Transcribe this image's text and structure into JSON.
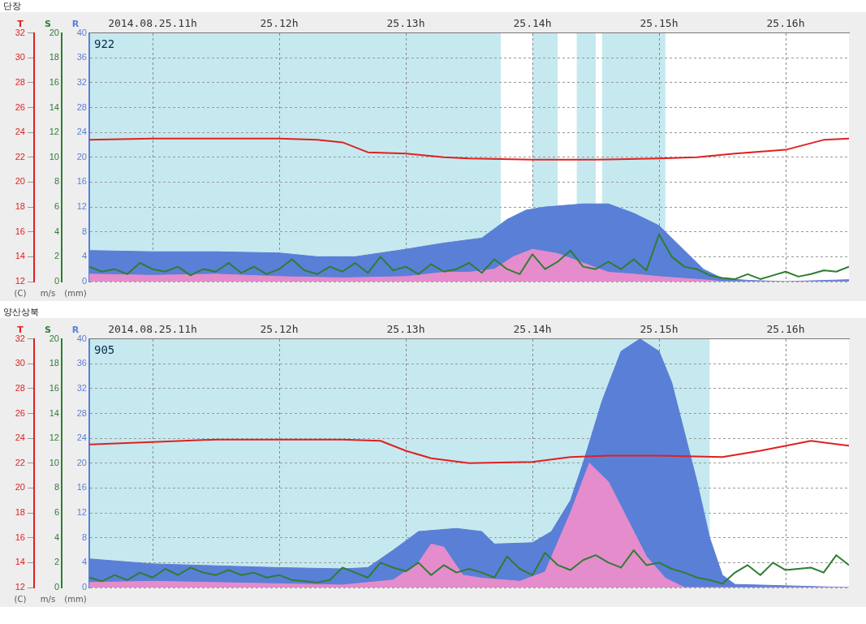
{
  "chart_data": [
    {
      "type": "line",
      "title": "단장",
      "subtitle": "922",
      "ylabel": "T",
      "y2label": "S",
      "y3label": "R",
      "annotations": [
        "(mm)",
        "m/s",
        "(C)"
      ],
      "xlim": [
        "2014-08-25T10:30",
        "2014-08-25T16:30"
      ],
      "xticks": [
        {
          "value": "2014-08-25T11:00",
          "label": "2014.08.25.11h"
        },
        {
          "value": "2014-08-25T12:00",
          "label": "25.12h"
        },
        {
          "value": "2014-08-25T13:00",
          "label": "25.13h"
        },
        {
          "value": "2014-08-25T14:00",
          "label": "25.14h"
        },
        {
          "value": "2014-08-25T15:00",
          "label": "25.15h"
        },
        {
          "value": "2014-08-25T16:00",
          "label": "25.16h"
        }
      ],
      "ylim": [
        12,
        32
      ],
      "yticks": [
        12,
        14,
        16,
        18,
        20,
        22,
        24,
        26,
        28,
        30,
        32
      ],
      "y2lim": [
        0,
        20
      ],
      "y2ticks": [
        0,
        2,
        4,
        6,
        8,
        10,
        12,
        14,
        16,
        18,
        20
      ],
      "y3lim": [
        0,
        40
      ],
      "y3ticks": [
        0,
        4,
        8,
        12,
        16,
        20,
        24,
        28,
        32,
        36,
        40
      ],
      "grid": true,
      "bands": [
        {
          "axis": "x",
          "from": "2014-08-25T10:30",
          "to": "2014-08-25T13:45",
          "color": "#c6e9f0"
        },
        {
          "axis": "x",
          "from": "2014-08-25T14:00",
          "to": "2014-08-25T14:12",
          "color": "#c6e9f0"
        },
        {
          "axis": "x",
          "from": "2014-08-25T14:21",
          "to": "2014-08-25T14:30",
          "color": "#c6e9f0"
        },
        {
          "axis": "x",
          "from": "2014-08-25T14:33",
          "to": "2014-08-25T15:03",
          "color": "#c6e9f0"
        }
      ],
      "series": [
        {
          "type": "area",
          "axis": "y3",
          "color": "#5a7fd6",
          "x": [
            "2014-08-25T10:30",
            "2014-08-25T11:00",
            "2014-08-25T11:30",
            "2014-08-25T12:00",
            "2014-08-25T12:18",
            "2014-08-25T12:36",
            "2014-08-25T13:00",
            "2014-08-25T13:18",
            "2014-08-25T13:36",
            "2014-08-25T13:48",
            "2014-08-25T13:57",
            "2014-08-25T14:06",
            "2014-08-25T14:24",
            "2014-08-25T14:36",
            "2014-08-25T14:48",
            "2014-08-25T15:00",
            "2014-08-25T15:12",
            "2014-08-25T15:21",
            "2014-08-25T15:30",
            "2014-08-25T15:42",
            "2014-08-25T16:00",
            "2014-08-25T16:30"
          ],
          "values": [
            5,
            4.8,
            4.8,
            4.6,
            4,
            4,
            5.2,
            6.2,
            7,
            10,
            11.5,
            12,
            12.5,
            12.5,
            11,
            9,
            5,
            2,
            0.5,
            0.2,
            0,
            0.3
          ]
        },
        {
          "type": "area",
          "axis": "y3",
          "color": "#e58ccc",
          "x": [
            "2014-08-25T10:30",
            "2014-08-25T11:00",
            "2014-08-25T11:30",
            "2014-08-25T12:00",
            "2014-08-25T12:30",
            "2014-08-25T13:00",
            "2014-08-25T13:18",
            "2014-08-25T13:30",
            "2014-08-25T13:42",
            "2014-08-25T13:51",
            "2014-08-25T14:00",
            "2014-08-25T14:12",
            "2014-08-25T14:24",
            "2014-08-25T14:36",
            "2014-08-25T14:48",
            "2014-08-25T15:00",
            "2014-08-25T15:12",
            "2014-08-25T15:21",
            "2014-08-25T15:30",
            "2014-08-25T16:30"
          ],
          "values": [
            1.2,
            1,
            1.2,
            0.8,
            0.6,
            0.8,
            1.5,
            1.5,
            2,
            4,
            5.2,
            4.5,
            3,
            1.5,
            1.2,
            0.8,
            0.5,
            0.3,
            0,
            0
          ]
        },
        {
          "type": "line",
          "axis": "y2",
          "color": "#2e7d32",
          "x": [
            "2014-08-25T10:30",
            "2014-08-25T10:36",
            "2014-08-25T10:42",
            "2014-08-25T10:48",
            "2014-08-25T10:54",
            "2014-08-25T11:00",
            "2014-08-25T11:06",
            "2014-08-25T11:12",
            "2014-08-25T11:18",
            "2014-08-25T11:24",
            "2014-08-25T11:30",
            "2014-08-25T11:36",
            "2014-08-25T11:42",
            "2014-08-25T11:48",
            "2014-08-25T11:54",
            "2014-08-25T12:00",
            "2014-08-25T12:06",
            "2014-08-25T12:12",
            "2014-08-25T12:18",
            "2014-08-25T12:24",
            "2014-08-25T12:30",
            "2014-08-25T12:36",
            "2014-08-25T12:42",
            "2014-08-25T12:48",
            "2014-08-25T12:54",
            "2014-08-25T13:00",
            "2014-08-25T13:06",
            "2014-08-25T13:12",
            "2014-08-25T13:18",
            "2014-08-25T13:24",
            "2014-08-25T13:30",
            "2014-08-25T13:36",
            "2014-08-25T13:42",
            "2014-08-25T13:48",
            "2014-08-25T13:54",
            "2014-08-25T14:00",
            "2014-08-25T14:06",
            "2014-08-25T14:12",
            "2014-08-25T14:18",
            "2014-08-25T14:24",
            "2014-08-25T14:30",
            "2014-08-25T14:36",
            "2014-08-25T14:42",
            "2014-08-25T14:48",
            "2014-08-25T14:54",
            "2014-08-25T15:00",
            "2014-08-25T15:06",
            "2014-08-25T15:12",
            "2014-08-25T15:18",
            "2014-08-25T15:24",
            "2014-08-25T15:30",
            "2014-08-25T15:36",
            "2014-08-25T15:42",
            "2014-08-25T15:48",
            "2014-08-25T15:54",
            "2014-08-25T16:00",
            "2014-08-25T16:06",
            "2014-08-25T16:12",
            "2014-08-25T16:18",
            "2014-08-25T16:24",
            "2014-08-25T16:30"
          ],
          "values": [
            1.2,
            0.8,
            1.0,
            0.6,
            1.5,
            1.0,
            0.8,
            1.2,
            0.5,
            1.0,
            0.8,
            1.5,
            0.7,
            1.2,
            0.6,
            1.0,
            1.8,
            0.9,
            0.6,
            1.2,
            0.8,
            1.5,
            0.7,
            2.0,
            0.9,
            1.2,
            0.6,
            1.4,
            0.8,
            1.0,
            1.5,
            0.7,
            1.8,
            1.0,
            0.6,
            2.2,
            1.0,
            1.6,
            2.5,
            1.2,
            1.0,
            1.6,
            1.0,
            1.8,
            0.9,
            3.8,
            2.0,
            1.2,
            1.0,
            0.5,
            0.3,
            0.2,
            0.6,
            0.2,
            0.5,
            0.8,
            0.4,
            0.6,
            0.9,
            0.8,
            1.2
          ]
        },
        {
          "type": "line",
          "axis": "y",
          "color": "#e02020",
          "x": [
            "2014-08-25T10:30",
            "2014-08-25T11:00",
            "2014-08-25T11:30",
            "2014-08-25T12:00",
            "2014-08-25T12:18",
            "2014-08-25T12:30",
            "2014-08-25T12:42",
            "2014-08-25T13:00",
            "2014-08-25T13:18",
            "2014-08-25T13:30",
            "2014-08-25T14:00",
            "2014-08-25T14:30",
            "2014-08-25T15:00",
            "2014-08-25T15:18",
            "2014-08-25T15:36",
            "2014-08-25T16:00",
            "2014-08-25T16:18",
            "2014-08-25T16:30"
          ],
          "values": [
            23.4,
            23.5,
            23.5,
            23.5,
            23.4,
            23.2,
            22.4,
            22.3,
            22.0,
            21.9,
            21.8,
            21.8,
            21.9,
            22.0,
            22.3,
            22.6,
            23.4,
            23.5
          ]
        }
      ]
    },
    {
      "type": "line",
      "title": "양산상북",
      "subtitle": "905",
      "ylabel": "T",
      "y2label": "S",
      "y3label": "R",
      "annotations": [
        "(mm)",
        "m/s",
        "(C)"
      ],
      "xlim": [
        "2014-08-25T10:30",
        "2014-08-25T16:30"
      ],
      "xticks": [
        {
          "value": "2014-08-25T11:00",
          "label": "2014.08.25.11h"
        },
        {
          "value": "2014-08-25T12:00",
          "label": "25.12h"
        },
        {
          "value": "2014-08-25T13:00",
          "label": "25.13h"
        },
        {
          "value": "2014-08-25T14:00",
          "label": "25.14h"
        },
        {
          "value": "2014-08-25T15:00",
          "label": "25.15h"
        },
        {
          "value": "2014-08-25T16:00",
          "label": "25.16h"
        }
      ],
      "ylim": [
        12,
        32
      ],
      "yticks": [
        12,
        14,
        16,
        18,
        20,
        22,
        24,
        26,
        28,
        30,
        32
      ],
      "y2lim": [
        0,
        20
      ],
      "y2ticks": [
        0,
        2,
        4,
        6,
        8,
        10,
        12,
        14,
        16,
        18,
        20
      ],
      "y3lim": [
        0,
        40
      ],
      "y3ticks": [
        0,
        4,
        8,
        12,
        16,
        20,
        24,
        28,
        32,
        36,
        40
      ],
      "grid": true,
      "bands": [
        {
          "axis": "x",
          "from": "2014-08-25T10:30",
          "to": "2014-08-25T15:24",
          "color": "#c6e9f0"
        }
      ],
      "series": [
        {
          "type": "area",
          "axis": "y3",
          "color": "#5a7fd6",
          "x": [
            "2014-08-25T10:30",
            "2014-08-25T11:00",
            "2014-08-25T11:30",
            "2014-08-25T12:00",
            "2014-08-25T12:30",
            "2014-08-25T12:42",
            "2014-08-25T12:54",
            "2014-08-25T13:06",
            "2014-08-25T13:24",
            "2014-08-25T13:36",
            "2014-08-25T13:42",
            "2014-08-25T14:00",
            "2014-08-25T14:09",
            "2014-08-25T14:18",
            "2014-08-25T14:24",
            "2014-08-25T14:33",
            "2014-08-25T14:42",
            "2014-08-25T14:51",
            "2014-08-25T15:00",
            "2014-08-25T15:06",
            "2014-08-25T15:12",
            "2014-08-25T15:18",
            "2014-08-25T15:24",
            "2014-08-25T15:30",
            "2014-08-25T15:36",
            "2014-08-25T16:30"
          ],
          "values": [
            4.6,
            3.8,
            3.5,
            3.2,
            3.0,
            3.2,
            6,
            9,
            9.5,
            9,
            7,
            7.2,
            9,
            14,
            20,
            30,
            38,
            40,
            38,
            33,
            25,
            17,
            8,
            2,
            0.5,
            0
          ]
        },
        {
          "type": "area",
          "axis": "y3",
          "color": "#e58ccc",
          "x": [
            "2014-08-25T10:30",
            "2014-08-25T11:00",
            "2014-08-25T11:30",
            "2014-08-25T12:00",
            "2014-08-25T12:30",
            "2014-08-25T12:54",
            "2014-08-25T13:06",
            "2014-08-25T13:12",
            "2014-08-25T13:18",
            "2014-08-25T13:27",
            "2014-08-25T13:36",
            "2014-08-25T13:54",
            "2014-08-25T14:06",
            "2014-08-25T14:18",
            "2014-08-25T14:27",
            "2014-08-25T14:36",
            "2014-08-25T14:45",
            "2014-08-25T14:54",
            "2014-08-25T15:03",
            "2014-08-25T15:12",
            "2014-08-25T16:30"
          ],
          "values": [
            0.8,
            1,
            0.8,
            0.6,
            0.4,
            1.2,
            4,
            7,
            6.5,
            2,
            1.5,
            1,
            2.5,
            12,
            20,
            17,
            11,
            5,
            1.5,
            0,
            0
          ]
        },
        {
          "type": "line",
          "axis": "y2",
          "color": "#2e7d32",
          "x": [
            "2014-08-25T10:30",
            "2014-08-25T10:36",
            "2014-08-25T10:42",
            "2014-08-25T10:48",
            "2014-08-25T10:54",
            "2014-08-25T11:00",
            "2014-08-25T11:06",
            "2014-08-25T11:12",
            "2014-08-25T11:18",
            "2014-08-25T11:24",
            "2014-08-25T11:30",
            "2014-08-25T11:36",
            "2014-08-25T11:42",
            "2014-08-25T11:48",
            "2014-08-25T11:54",
            "2014-08-25T12:00",
            "2014-08-25T12:06",
            "2014-08-25T12:12",
            "2014-08-25T12:18",
            "2014-08-25T12:24",
            "2014-08-25T12:30",
            "2014-08-25T12:36",
            "2014-08-25T12:42",
            "2014-08-25T12:48",
            "2014-08-25T12:54",
            "2014-08-25T13:00",
            "2014-08-25T13:06",
            "2014-08-25T13:12",
            "2014-08-25T13:18",
            "2014-08-25T13:24",
            "2014-08-25T13:30",
            "2014-08-25T13:36",
            "2014-08-25T13:42",
            "2014-08-25T13:48",
            "2014-08-25T13:54",
            "2014-08-25T14:00",
            "2014-08-25T14:06",
            "2014-08-25T14:12",
            "2014-08-25T14:18",
            "2014-08-25T14:24",
            "2014-08-25T14:30",
            "2014-08-25T14:36",
            "2014-08-25T14:42",
            "2014-08-25T14:48",
            "2014-08-25T14:54",
            "2014-08-25T15:00",
            "2014-08-25T15:06",
            "2014-08-25T15:12",
            "2014-08-25T15:18",
            "2014-08-25T15:24",
            "2014-08-25T15:30",
            "2014-08-25T15:36",
            "2014-08-25T15:42",
            "2014-08-25T15:48",
            "2014-08-25T15:54",
            "2014-08-25T16:00",
            "2014-08-25T16:06",
            "2014-08-25T16:12",
            "2014-08-25T16:18",
            "2014-08-25T16:24",
            "2014-08-25T16:30"
          ],
          "values": [
            0.8,
            0.5,
            1.0,
            0.6,
            1.2,
            0.8,
            1.5,
            1.0,
            1.6,
            1.2,
            1.0,
            1.4,
            1.0,
            1.2,
            0.8,
            1.0,
            0.6,
            0.5,
            0.4,
            0.6,
            1.6,
            1.2,
            0.8,
            2.0,
            1.6,
            1.3,
            2.0,
            1.0,
            1.8,
            1.2,
            1.5,
            1.2,
            0.8,
            2.5,
            1.5,
            1.0,
            2.8,
            1.8,
            1.4,
            2.2,
            2.6,
            2.0,
            1.6,
            3.0,
            1.8,
            2.0,
            1.5,
            1.2,
            0.8,
            0.6,
            0.3,
            1.2,
            1.8,
            1.0,
            2.0,
            1.4,
            1.5,
            1.6,
            1.2,
            2.6,
            1.8
          ]
        },
        {
          "type": "line",
          "axis": "y",
          "color": "#e02020",
          "x": [
            "2014-08-25T10:30",
            "2014-08-25T11:00",
            "2014-08-25T11:30",
            "2014-08-25T12:00",
            "2014-08-25T12:30",
            "2014-08-25T12:48",
            "2014-08-25T13:00",
            "2014-08-25T13:12",
            "2014-08-25T13:30",
            "2014-08-25T14:00",
            "2014-08-25T14:18",
            "2014-08-25T14:36",
            "2014-08-25T15:00",
            "2014-08-25T15:30",
            "2014-08-25T15:48",
            "2014-08-25T16:12",
            "2014-08-25T16:30"
          ],
          "values": [
            23.5,
            23.7,
            23.9,
            23.9,
            23.9,
            23.8,
            23.0,
            22.4,
            22.0,
            22.1,
            22.5,
            22.6,
            22.6,
            22.5,
            23.0,
            23.8,
            23.4
          ]
        }
      ]
    }
  ]
}
